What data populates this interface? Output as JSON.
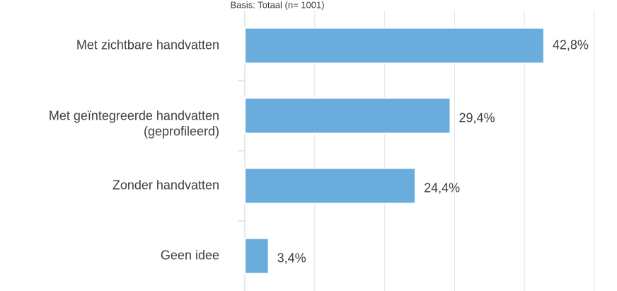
{
  "chart_data": {
    "type": "bar",
    "orientation": "horizontal",
    "subtitle": "Basis: Totaal (n= 1001)",
    "categories": [
      "Met zichtbare handvatten",
      "Met geïntegreerde handvatten\n(geprofileerd)",
      "Zonder handvatten",
      "Geen idee"
    ],
    "values": [
      42.8,
      29.4,
      24.4,
      3.4
    ],
    "value_labels": [
      "42,8%",
      "29,4%",
      "24,4%",
      "3,4%"
    ],
    "color": "#6aaddd",
    "xlim": [
      0,
      50
    ],
    "xticks": [
      0,
      10,
      20,
      30,
      40,
      50
    ],
    "grid": true
  }
}
